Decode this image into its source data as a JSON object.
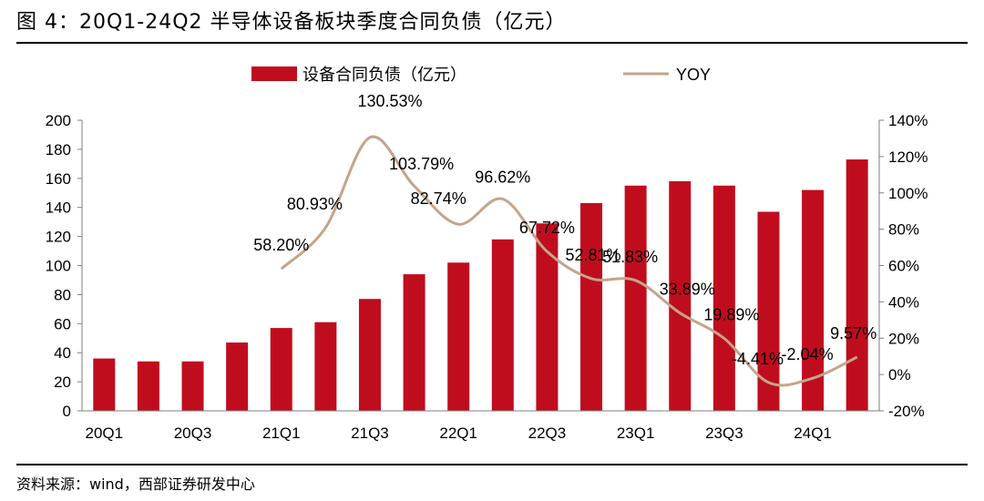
{
  "figure": {
    "title": "图 4：20Q1-24Q2 半导体设备板块季度合同负债（亿元）",
    "source": "资料来源：wind，西部证券研发中心"
  },
  "colors": {
    "bar": "#C00D1E",
    "line": "#C3A58A",
    "rule": "#000000",
    "axis": "#7F7F7F"
  },
  "chart_data": {
    "type": "bar",
    "categories": [
      "20Q1",
      "20Q2",
      "20Q3",
      "20Q4",
      "21Q1",
      "21Q2",
      "21Q3",
      "21Q4",
      "22Q1",
      "22Q2",
      "22Q3",
      "22Q4",
      "23Q1",
      "23Q2",
      "23Q3",
      "23Q4",
      "24Q1",
      "24Q2"
    ],
    "x_tick_labels": [
      "20Q1",
      "",
      "20Q3",
      "",
      "21Q1",
      "",
      "21Q3",
      "",
      "22Q1",
      "",
      "22Q3",
      "",
      "23Q1",
      "",
      "23Q3",
      "",
      "24Q1",
      ""
    ],
    "series": [
      {
        "name": "设备合同负债（亿元）",
        "type": "bar",
        "axis": "left",
        "values": [
          36,
          34,
          34,
          47,
          57,
          61,
          77,
          94,
          102,
          118,
          129,
          143,
          155,
          158,
          155,
          137,
          152,
          173
        ]
      },
      {
        "name": "YOY",
        "type": "line",
        "axis": "right",
        "values": [
          null,
          null,
          null,
          null,
          58.2,
          80.93,
          130.53,
          103.79,
          82.74,
          96.62,
          67.72,
          52.81,
          51.83,
          33.89,
          19.89,
          -4.41,
          -2.04,
          9.57
        ],
        "labels": [
          "",
          "",
          "",
          "",
          "58.20%",
          "80.93%",
          "130.53%",
          "103.79%",
          "82.74%",
          "96.62%",
          "67.72%",
          "52.81%",
          "51.83%",
          "33.89%",
          "19.89%",
          "-4.41%",
          "-2.04%",
          "9.57%"
        ]
      }
    ],
    "y_left": {
      "min": 0,
      "max": 200,
      "step": 20,
      "tick_labels": [
        "0",
        "20",
        "40",
        "60",
        "80",
        "100",
        "120",
        "140",
        "160",
        "180",
        "200"
      ]
    },
    "y_right": {
      "min": -20,
      "max": 140,
      "step": 20,
      "tick_labels": [
        "-20%",
        "0%",
        "20%",
        "40%",
        "60%",
        "80%",
        "100%",
        "120%",
        "140%"
      ]
    },
    "legend": {
      "position": "top",
      "bar_label": "设备合同负债（亿元）",
      "line_label": "YOY"
    },
    "grid": false
  }
}
